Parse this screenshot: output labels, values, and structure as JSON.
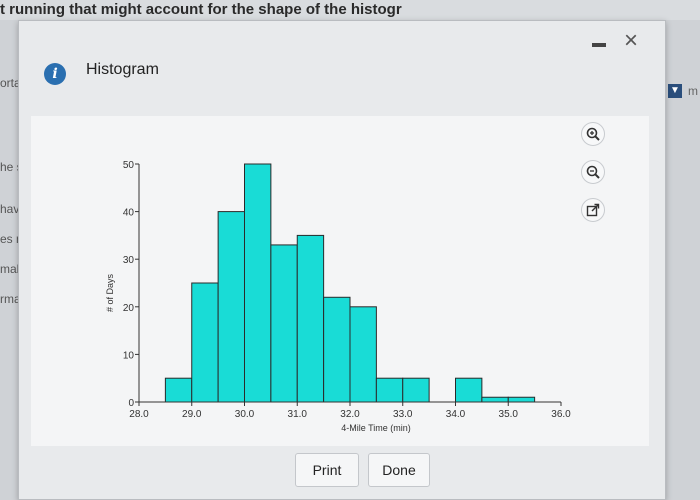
{
  "background": {
    "top_text": "t running that might account for the shape of the histogr",
    "left_fragments": [
      "orta",
      "he s",
      "have",
      "es m",
      "mal b",
      "rmal b"
    ],
    "right_fragment": "m"
  },
  "dialog": {
    "title": "Histogram",
    "info_icon": "info-icon",
    "close_glyph": "×"
  },
  "toolbar": {
    "zoom_in": "zoom-in-icon",
    "zoom_out": "zoom-out-icon",
    "popout": "popout-icon"
  },
  "buttons": {
    "print_label": "Print",
    "done_label": "Done"
  },
  "colors": {
    "bar_fill": "#19dcd6",
    "bar_stroke": "#2a2a2a",
    "accent": "#2a6fb0"
  },
  "chart_data": {
    "type": "bar",
    "title": "",
    "xlabel": "4-Mile Time (min)",
    "ylabel": "# of Days",
    "xlim": [
      28.0,
      36.0
    ],
    "ylim": [
      0,
      50
    ],
    "x_ticks": [
      "28.0",
      "29.0",
      "30.0",
      "31.0",
      "32.0",
      "33.0",
      "34.0",
      "35.0",
      "36.0"
    ],
    "y_ticks": [
      "0",
      "10",
      "20",
      "30",
      "40",
      "50"
    ],
    "bin_width": 0.5,
    "bins": [
      {
        "start": 28.5,
        "end": 29.0,
        "value": 5
      },
      {
        "start": 29.0,
        "end": 29.5,
        "value": 25
      },
      {
        "start": 29.5,
        "end": 30.0,
        "value": 40
      },
      {
        "start": 30.0,
        "end": 30.5,
        "value": 50
      },
      {
        "start": 30.5,
        "end": 31.0,
        "value": 33
      },
      {
        "start": 31.0,
        "end": 31.5,
        "value": 35
      },
      {
        "start": 31.5,
        "end": 32.0,
        "value": 22
      },
      {
        "start": 32.0,
        "end": 32.5,
        "value": 20
      },
      {
        "start": 32.5,
        "end": 33.0,
        "value": 5
      },
      {
        "start": 33.0,
        "end": 33.5,
        "value": 5
      },
      {
        "start": 34.0,
        "end": 34.5,
        "value": 5
      },
      {
        "start": 34.5,
        "end": 35.0,
        "value": 1
      },
      {
        "start": 35.0,
        "end": 35.5,
        "value": 1
      }
    ],
    "grid": false
  }
}
